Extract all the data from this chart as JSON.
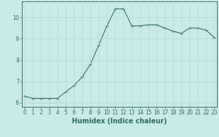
{
  "x": [
    0,
    1,
    2,
    3,
    4,
    5,
    6,
    7,
    8,
    9,
    10,
    11,
    12,
    13,
    14,
    15,
    16,
    17,
    18,
    19,
    20,
    21,
    22,
    23
  ],
  "y": [
    6.3,
    6.2,
    6.2,
    6.2,
    6.2,
    6.5,
    6.8,
    7.2,
    7.8,
    8.7,
    9.6,
    10.4,
    10.4,
    9.6,
    9.6,
    9.65,
    9.65,
    9.5,
    9.35,
    9.25,
    9.5,
    9.5,
    9.4,
    9.05
  ],
  "line_color": "#2e6b60",
  "marker": "+",
  "marker_size": 3.5,
  "line_width": 0.8,
  "bg_color": "#c8eae8",
  "grid_color": "#b0d8d4",
  "xlabel": "Humidex (Indice chaleur)",
  "xlabel_fontsize": 7,
  "yticks": [
    6,
    7,
    8,
    9,
    10
  ],
  "xticks": [
    0,
    1,
    2,
    3,
    4,
    5,
    6,
    7,
    8,
    9,
    10,
    11,
    12,
    13,
    14,
    15,
    16,
    17,
    18,
    19,
    20,
    21,
    22,
    23
  ],
  "xlim": [
    -0.3,
    23.3
  ],
  "ylim": [
    5.8,
    10.75
  ],
  "tick_fontsize": 5.5,
  "axis_color": "#2e6b60",
  "spine_color": "#2e6b60"
}
